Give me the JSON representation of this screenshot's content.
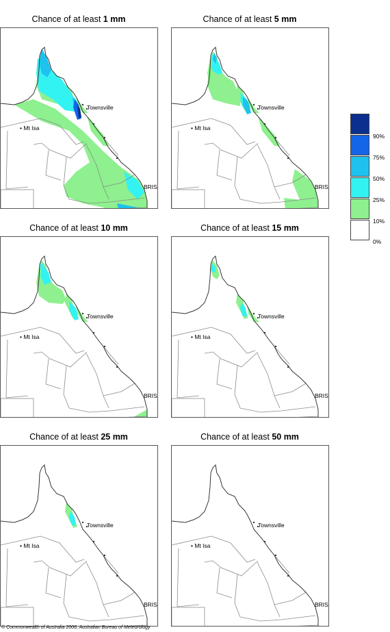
{
  "panels": [
    {
      "prefix": "Chance of at least ",
      "amount": "1 mm",
      "level": 5
    },
    {
      "prefix": "Chance of at least ",
      "amount": "5 mm",
      "level": 4
    },
    {
      "prefix": "Chance of at least ",
      "amount": "10 mm",
      "level": 3
    },
    {
      "prefix": "Chance of at least ",
      "amount": "15 mm",
      "level": 2
    },
    {
      "prefix": "Chance of at least ",
      "amount": "25 mm",
      "level": 1
    },
    {
      "prefix": "Chance of at least ",
      "amount": "50 mm",
      "level": 0
    }
  ],
  "places": {
    "townsville": "Townsville",
    "mt_isa": "Mt Isa",
    "bris": "BRIS"
  },
  "legend": {
    "labels": [
      "90%",
      "75%",
      "50%",
      "25%",
      "10%",
      "0%"
    ],
    "colors": [
      "#0a2f8f",
      "#1565e8",
      "#1ec2ee",
      "#33f2f2",
      "#8ef08e",
      "#ffffff"
    ]
  },
  "footer": "© Commonwealth of Australia 2006, Australian Bureau of Meteorology"
}
